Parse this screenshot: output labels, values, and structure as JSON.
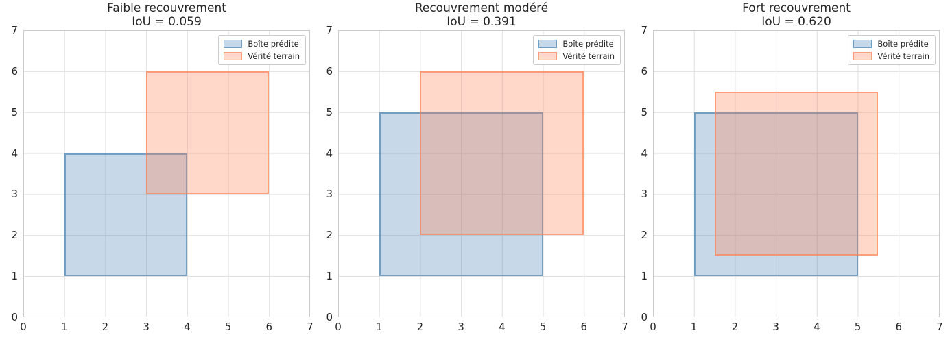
{
  "figure": {
    "background": "#ffffff",
    "text_color": "#262626",
    "grid_color": "#dedede",
    "spine_color": "#cbcbcb",
    "predicted_fill": "rgba(70,130,180,0.30)",
    "predicted_edge": "rgba(70,130,180,0.65)",
    "truth_fill": "rgba(255,127,80,0.30)",
    "truth_edge": "rgba(255,127,80,0.65)"
  },
  "chart_data": [
    {
      "type": "box-overlap",
      "title": "Faible recouvrement",
      "subtitle": "IoU = 0.059",
      "iou": 0.059,
      "xlim": [
        0,
        7
      ],
      "ylim": [
        0,
        7
      ],
      "xticks": [
        0,
        1,
        2,
        3,
        4,
        5,
        6,
        7
      ],
      "yticks": [
        0,
        1,
        2,
        3,
        4,
        5,
        6,
        7
      ],
      "grid": true,
      "legend_position": "upper-right",
      "boxes": [
        {
          "name": "Boîte prédite",
          "kind": "predicted-box",
          "x": 1,
          "y": 1,
          "w": 3,
          "h": 3,
          "fill": "rgba(70,130,180,0.30)",
          "edge": "rgba(70,130,180,0.65)"
        },
        {
          "name": "Vérité terrain",
          "kind": "ground-truth-box",
          "x": 3,
          "y": 3,
          "w": 3,
          "h": 3,
          "fill": "rgba(255,127,80,0.30)",
          "edge": "rgba(255,127,80,0.65)"
        }
      ]
    },
    {
      "type": "box-overlap",
      "title": "Recouvrement modéré",
      "subtitle": "IoU = 0.391",
      "iou": 0.391,
      "xlim": [
        0,
        7
      ],
      "ylim": [
        0,
        7
      ],
      "xticks": [
        0,
        1,
        2,
        3,
        4,
        5,
        6,
        7
      ],
      "yticks": [
        0,
        1,
        2,
        3,
        4,
        5,
        6,
        7
      ],
      "grid": true,
      "legend_position": "upper-right",
      "boxes": [
        {
          "name": "Boîte prédite",
          "kind": "predicted-box",
          "x": 1,
          "y": 1,
          "w": 4,
          "h": 4,
          "fill": "rgba(70,130,180,0.30)",
          "edge": "rgba(70,130,180,0.65)"
        },
        {
          "name": "Vérité terrain",
          "kind": "ground-truth-box",
          "x": 2,
          "y": 2,
          "w": 4,
          "h": 4,
          "fill": "rgba(255,127,80,0.30)",
          "edge": "rgba(255,127,80,0.65)"
        }
      ]
    },
    {
      "type": "box-overlap",
      "title": "Fort recouvrement",
      "subtitle": "IoU = 0.620",
      "iou": 0.62,
      "xlim": [
        0,
        7
      ],
      "ylim": [
        0,
        7
      ],
      "xticks": [
        0,
        1,
        2,
        3,
        4,
        5,
        6,
        7
      ],
      "yticks": [
        0,
        1,
        2,
        3,
        4,
        5,
        6,
        7
      ],
      "grid": true,
      "legend_position": "upper-right",
      "boxes": [
        {
          "name": "Boîte prédite",
          "kind": "predicted-box",
          "x": 1,
          "y": 1,
          "w": 4,
          "h": 4,
          "fill": "rgba(70,130,180,0.30)",
          "edge": "rgba(70,130,180,0.65)"
        },
        {
          "name": "Vérité terrain",
          "kind": "ground-truth-box",
          "x": 1.5,
          "y": 1.5,
          "w": 4,
          "h": 4,
          "fill": "rgba(255,127,80,0.30)",
          "edge": "rgba(255,127,80,0.65)"
        }
      ]
    }
  ]
}
